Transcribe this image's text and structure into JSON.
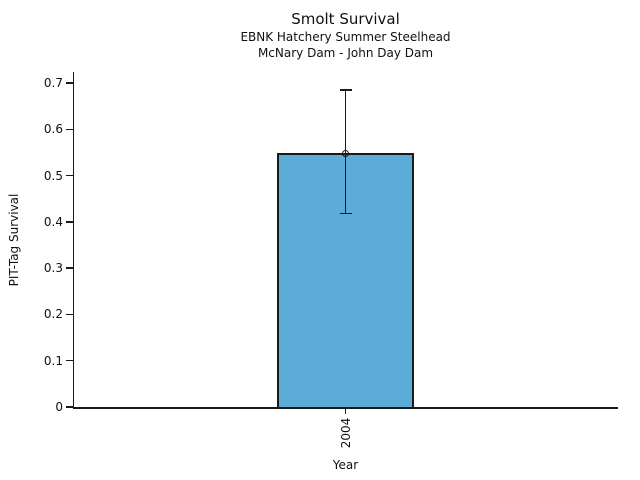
{
  "chart_data": {
    "type": "bar",
    "title": "Smolt Survival",
    "subtitle_lines": [
      "EBNK Hatchery Summer Steelhead",
      "McNary Dam - John Day Dam"
    ],
    "xlabel": "Year",
    "ylabel": "PIT-Tag Survival",
    "categories": [
      "2004"
    ],
    "values": [
      0.548
    ],
    "error_low": [
      0.418
    ],
    "error_high": [
      0.685
    ],
    "ylim": [
      0,
      0.725
    ],
    "yticks": [
      0,
      0.1,
      0.2,
      0.3,
      0.4,
      0.5,
      0.6,
      0.7
    ],
    "ytick_labels": [
      "0",
      "0.1",
      "0.2",
      "0.3",
      "0.4",
      "0.5",
      "0.6",
      "0.7"
    ],
    "xtick_rotation_deg": 90,
    "bar_fill_color": "#5BACD6",
    "bar_edge_color": "#1a1a1a",
    "errorbar_color": "#1a1a1a",
    "marker": "open-circle",
    "grid": false,
    "legend": "none",
    "background_color": "#ffffff"
  }
}
